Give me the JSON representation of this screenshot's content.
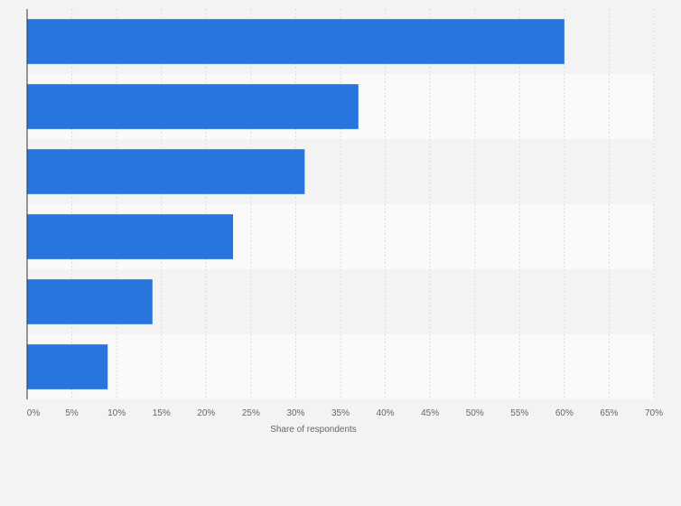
{
  "chart_data": {
    "type": "bar",
    "orientation": "horizontal",
    "categories": [
      "",
      "",
      "",
      "",
      "",
      ""
    ],
    "values": [
      60,
      37,
      31,
      23,
      14,
      9
    ],
    "xlabel": "Share of respondents",
    "x_ticks": [
      "0%",
      "5%",
      "10%",
      "15%",
      "20%",
      "25%",
      "30%",
      "35%",
      "40%",
      "45%",
      "50%",
      "55%",
      "60%",
      "65%",
      "70%"
    ],
    "xlim": [
      0,
      70
    ],
    "grid": true,
    "bar_color": "#2876dd",
    "band_colors": [
      "#f3f3f3",
      "#f9f9f9"
    ]
  }
}
